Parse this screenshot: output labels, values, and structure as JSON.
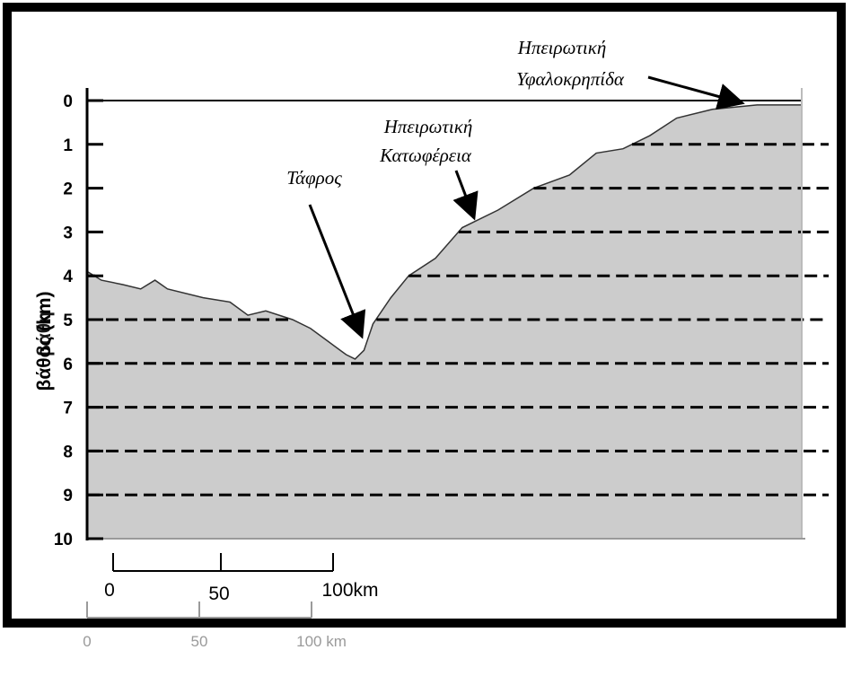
{
  "axis": {
    "ylabel": "βάθος (km)",
    "ylabel_overlap": "βάθη",
    "ticks": [
      "0",
      "1",
      "2",
      "3",
      "4",
      "5",
      "6",
      "7",
      "8",
      "9",
      "10"
    ]
  },
  "annotations": {
    "shelf_line1": "Ηπειρωτική",
    "shelf_line2": "Υφαλοκρηπίδα",
    "slope_line1": "Ηπειρωτική",
    "slope_line2": "Κατωφέρεια",
    "trench": "Τάφρος"
  },
  "scale_bar": {
    "labels": [
      "0",
      "50",
      "100km"
    ],
    "ghost_labels": [
      "0",
      "50",
      "100 km"
    ]
  },
  "profile": {
    "description_values_km": [
      [
        0,
        3.9
      ],
      [
        8,
        4.1
      ],
      [
        20,
        4.2
      ],
      [
        30,
        4.3
      ],
      [
        38,
        4.1
      ],
      [
        45,
        4.3
      ],
      [
        65,
        4.5
      ],
      [
        80,
        4.6
      ],
      [
        90,
        4.9
      ],
      [
        100,
        4.8
      ],
      [
        115,
        5.0
      ],
      [
        125,
        5.2
      ],
      [
        135,
        5.5
      ],
      [
        145,
        5.8
      ],
      [
        150,
        5.9
      ],
      [
        155,
        5.7
      ],
      [
        160,
        5.1
      ],
      [
        170,
        4.5
      ],
      [
        180,
        4.0
      ],
      [
        195,
        3.6
      ],
      [
        210,
        2.9
      ],
      [
        230,
        2.5
      ],
      [
        250,
        2.0
      ],
      [
        270,
        1.7
      ],
      [
        285,
        1.2
      ],
      [
        300,
        1.1
      ],
      [
        315,
        0.8
      ],
      [
        330,
        0.4
      ],
      [
        350,
        0.2
      ],
      [
        375,
        0.1
      ],
      [
        400,
        0.1
      ]
    ],
    "fill_color": "#cccccc",
    "dash_levels_km": [
      1,
      2,
      3,
      4,
      5,
      6,
      7,
      8,
      9
    ]
  },
  "colors": {
    "frame": "#000000",
    "fill": "#cccccc",
    "ghost": "#9a9a9a"
  }
}
